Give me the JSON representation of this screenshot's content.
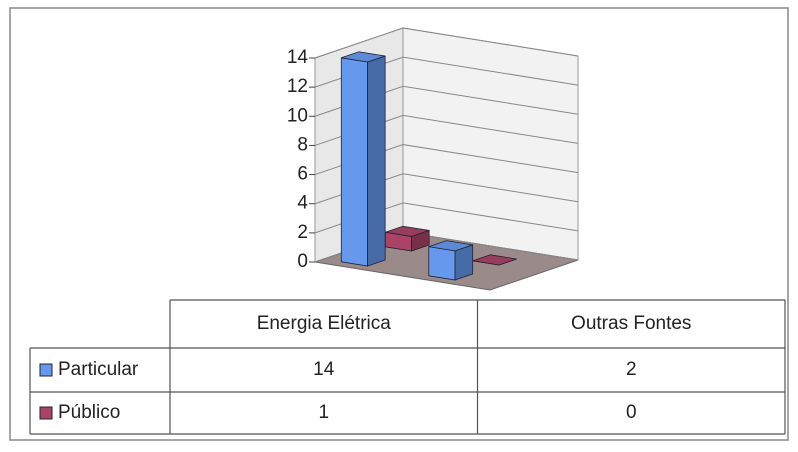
{
  "chart_data": {
    "type": "bar3d",
    "categories": [
      "Energia Elétrica",
      "Outras Fontes"
    ],
    "series": [
      {
        "name": "Particular",
        "color": "#6699ee",
        "values": [
          14,
          2
        ]
      },
      {
        "name": "Público",
        "color": "#aa4466",
        "values": [
          1,
          0
        ]
      }
    ],
    "ylim": [
      0,
      14
    ],
    "yticks": [
      0,
      2,
      4,
      6,
      8,
      10,
      12,
      14
    ],
    "grid": true,
    "legend": "table"
  }
}
